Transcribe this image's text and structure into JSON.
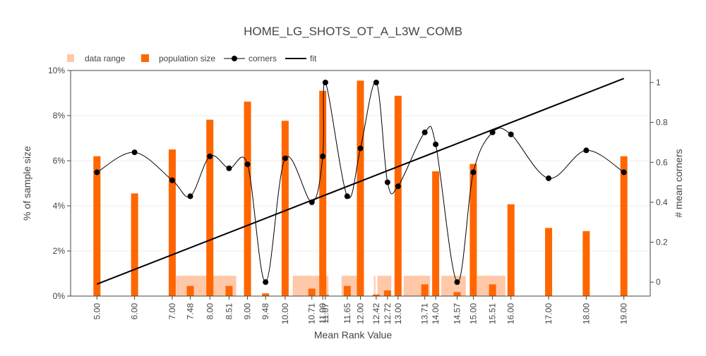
{
  "chart_data": {
    "type": "bar",
    "title": "HOME_LG_SHOTS_OT_A_L3W_COMB",
    "xlabel": "Mean Rank Value",
    "ylabel": "% of sample size",
    "y2label": "# mean corners",
    "legend_position": "top-left",
    "grid": true,
    "xlim": [
      4.3,
      19.7
    ],
    "ylim": [
      0,
      10
    ],
    "y2lim": [
      -0.07,
      1.06
    ],
    "x_ticks": [
      5.0,
      6.0,
      7.0,
      7.48,
      8.0,
      8.51,
      9.0,
      9.48,
      10.0,
      10.71,
      11.0,
      11.07,
      11.65,
      12.0,
      12.42,
      12.72,
      13.0,
      13.71,
      14.0,
      14.57,
      15.0,
      15.51,
      16.0,
      17.0,
      18.0,
      19.0
    ],
    "x_tick_labels": [
      "5.00",
      "6.00",
      "7.00",
      "7.48",
      "8.00",
      "8.51",
      "9.00",
      "9.48",
      "10.00",
      "10.71",
      "11.00",
      "11.07",
      "11.65",
      "12.00",
      "12.42",
      "12.72",
      "13.00",
      "13.71",
      "14.00",
      "14.57",
      "15.00",
      "15.51",
      "16.00",
      "17.00",
      "18.00",
      "19.00"
    ],
    "y_ticks": [
      0,
      2,
      4,
      6,
      8,
      10
    ],
    "y_tick_labels": [
      "0%",
      "2%",
      "4%",
      "6%",
      "8%",
      "10%"
    ],
    "y2_ticks": [
      0,
      0.2,
      0.4,
      0.6,
      0.8,
      1
    ],
    "y2_tick_labels": [
      "0",
      "0.2",
      "0.4",
      "0.6",
      "0.8",
      "1"
    ],
    "legend": [
      "data range",
      "population size",
      "corners",
      "fit"
    ],
    "series": [
      {
        "name": "population size",
        "kind": "bar",
        "color": "#ff6600",
        "x": [
          5.0,
          6.0,
          7.0,
          7.48,
          8.0,
          8.51,
          9.0,
          9.48,
          10.0,
          10.71,
          11.0,
          11.07,
          11.65,
          12.0,
          12.42,
          12.72,
          13.0,
          13.71,
          14.0,
          14.57,
          15.0,
          15.51,
          16.0,
          17.0,
          18.0,
          19.0
        ],
        "values": [
          6.2,
          4.55,
          6.5,
          0.45,
          7.82,
          0.45,
          8.62,
          0.12,
          7.77,
          0.33,
          9.1,
          0.05,
          0.45,
          9.55,
          0.07,
          0.25,
          8.88,
          0.52,
          5.53,
          0.18,
          5.86,
          0.52,
          4.07,
          3.02,
          2.88,
          6.2
        ]
      },
      {
        "name": "corners",
        "kind": "line+markers",
        "color": "#000000",
        "x": [
          5.0,
          6.0,
          7.0,
          7.48,
          8.0,
          8.51,
          9.0,
          9.48,
          10.0,
          10.71,
          11.0,
          11.07,
          11.65,
          12.0,
          12.42,
          12.72,
          13.0,
          13.71,
          14.0,
          14.57,
          15.0,
          15.51,
          16.0,
          17.0,
          18.0,
          19.0
        ],
        "values": [
          0.55,
          0.65,
          0.51,
          0.43,
          0.63,
          0.57,
          0.59,
          0.0,
          0.62,
          0.4,
          0.63,
          1.0,
          0.43,
          0.67,
          1.0,
          0.5,
          0.48,
          0.75,
          0.69,
          0.0,
          0.55,
          0.75,
          0.74,
          0.52,
          0.66,
          0.55
        ]
      },
      {
        "name": "fit",
        "kind": "line",
        "color": "#000000",
        "x": [
          5.0,
          19.0
        ],
        "values": [
          -0.01,
          1.02
        ]
      },
      {
        "name": "data range",
        "kind": "range-band",
        "color": "#ffc8a8",
        "height": 0.9,
        "ranges": [
          [
            7.1,
            8.7
          ],
          [
            10.2,
            11.15
          ],
          [
            11.5,
            12.05
          ],
          [
            12.36,
            12.4
          ],
          [
            12.45,
            12.82
          ],
          [
            13.15,
            13.85
          ],
          [
            14.15,
            14.8
          ],
          [
            15.1,
            15.85
          ]
        ]
      }
    ]
  }
}
